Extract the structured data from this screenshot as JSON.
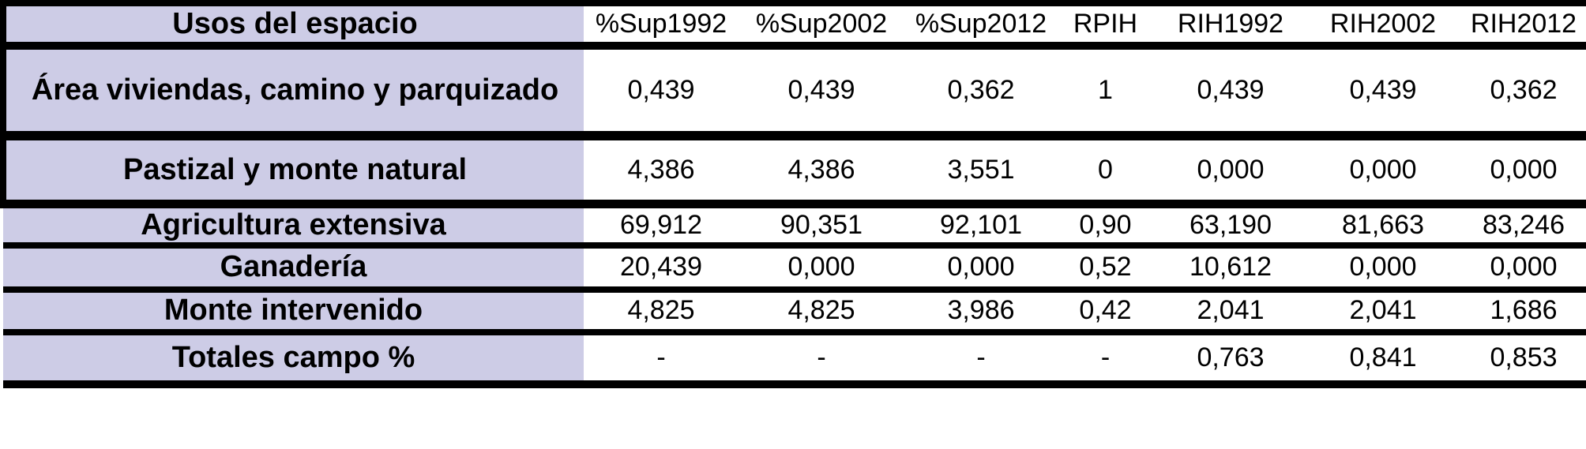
{
  "table": {
    "header": {
      "label_col": "Usos del espacio",
      "columns": [
        "%Sup1992",
        "%Sup2002",
        "%Sup2012",
        "RPIH",
        "RIH1992",
        "RIH2002",
        "RIH2012"
      ]
    },
    "rows": [
      {
        "label": "Área viviendas, camino y parquizado",
        "values": [
          "0,439",
          "0,439",
          "0,362",
          "1",
          "0,439",
          "0,439",
          "0,362"
        ]
      },
      {
        "label": "Pastizal y monte natural",
        "values": [
          "4,386",
          "4,386",
          "3,551",
          "0",
          "0,000",
          "0,000",
          "0,000"
        ]
      },
      {
        "label": "Agricultura extensiva",
        "values": [
          "69,912",
          "90,351",
          "92,101",
          "0,90",
          "63,190",
          "81,663",
          "83,246"
        ]
      },
      {
        "label": "Ganadería",
        "values": [
          "20,439",
          "0,000",
          "0,000",
          "0,52",
          "10,612",
          "0,000",
          "0,000"
        ]
      },
      {
        "label": "Monte intervenido",
        "values": [
          "4,825",
          "4,825",
          "3,986",
          "0,42",
          "2,041",
          "2,041",
          "1,686"
        ]
      },
      {
        "label": "Totales campo %",
        "values": [
          "-",
          "-",
          "-",
          "-",
          "0,763",
          "0,841",
          "0,853"
        ]
      }
    ],
    "colors": {
      "label_col_bg": "#cdcce6",
      "border": "#000000",
      "background": "#ffffff"
    }
  },
  "chart_data": {
    "type": "table",
    "title": "",
    "columns": [
      "Usos del espacio",
      "%Sup1992",
      "%Sup2002",
      "%Sup2012",
      "RPIH",
      "RIH1992",
      "RIH2002",
      "RIH2012"
    ],
    "rows": [
      [
        "Área viviendas, camino y parquizado",
        "0,439",
        "0,439",
        "0,362",
        "1",
        "0,439",
        "0,439",
        "0,362"
      ],
      [
        "Pastizal y monte natural",
        "4,386",
        "4,386",
        "3,551",
        "0",
        "0,000",
        "0,000",
        "0,000"
      ],
      [
        "Agricultura extensiva",
        "69,912",
        "90,351",
        "92,101",
        "0,90",
        "63,190",
        "81,663",
        "83,246"
      ],
      [
        "Ganadería",
        "20,439",
        "0,000",
        "0,000",
        "0,52",
        "10,612",
        "0,000",
        "0,000"
      ],
      [
        "Monte intervenido",
        "4,825",
        "4,825",
        "3,986",
        "0,42",
        "2,041",
        "2,041",
        "1,686"
      ],
      [
        "Totales campo %",
        "-",
        "-",
        "-",
        "-",
        "0,763",
        "0,841",
        "0,853"
      ]
    ],
    "decimal_separator": ",",
    "notes": "Left label column shaded lavender; heavy black horizontal rules between rows"
  }
}
